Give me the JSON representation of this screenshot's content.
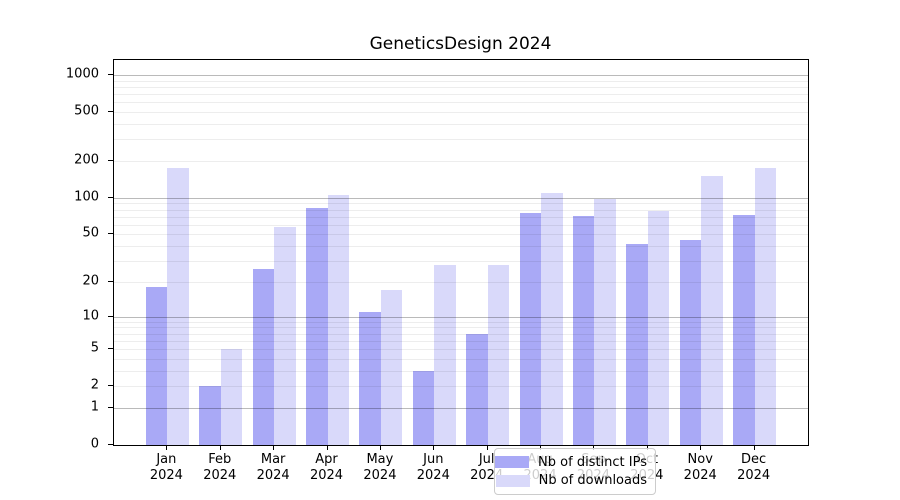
{
  "title": "GeneticsDesign 2024",
  "chart_data": {
    "type": "bar",
    "categories": [
      "Jan",
      "Feb",
      "Mar",
      "Apr",
      "May",
      "Jun",
      "Jul",
      "Aug",
      "Sep",
      "Oct",
      "Nov",
      "Dec"
    ],
    "x_year_label": "2024",
    "series": [
      {
        "name": "Nb of distinct IPs",
        "color": "#a9a9f6",
        "values": [
          18,
          2,
          26,
          82,
          11,
          3,
          7,
          75,
          71,
          42,
          45,
          72
        ]
      },
      {
        "name": "Nb of downloads",
        "color": "#d9d9fa",
        "values": [
          174,
          5,
          58,
          105,
          17,
          28,
          28,
          110,
          98,
          78,
          150,
          176
        ]
      }
    ],
    "yscale": "log1p",
    "ylim": [
      0,
      1324
    ],
    "yticks": [
      0,
      1,
      2,
      5,
      10,
      20,
      50,
      100,
      200,
      500,
      1000
    ],
    "major_gridlines": [
      1,
      10,
      100,
      1000
    ],
    "minor_gridlines": [
      2,
      3,
      4,
      5,
      6,
      7,
      8,
      9,
      20,
      30,
      40,
      50,
      60,
      70,
      80,
      90,
      200,
      300,
      400,
      500,
      600,
      700,
      800,
      900
    ],
    "grid": "on",
    "legend_position": "lower center inside plot"
  },
  "legend": {
    "items": [
      {
        "label": "Nb of distinct IPs",
        "color": "#a9a9f6"
      },
      {
        "label": "Nb of downloads",
        "color": "#d9d9fa"
      }
    ]
  },
  "colors": {
    "background": "#ffffff",
    "spine": "#000000",
    "major_grid": "rgba(0,0,0,0.27)",
    "minor_grid": "rgba(0,0,0,0.07)",
    "bar_ips": "#a9a9f6",
    "bar_downloads": "#d9d9fa"
  }
}
